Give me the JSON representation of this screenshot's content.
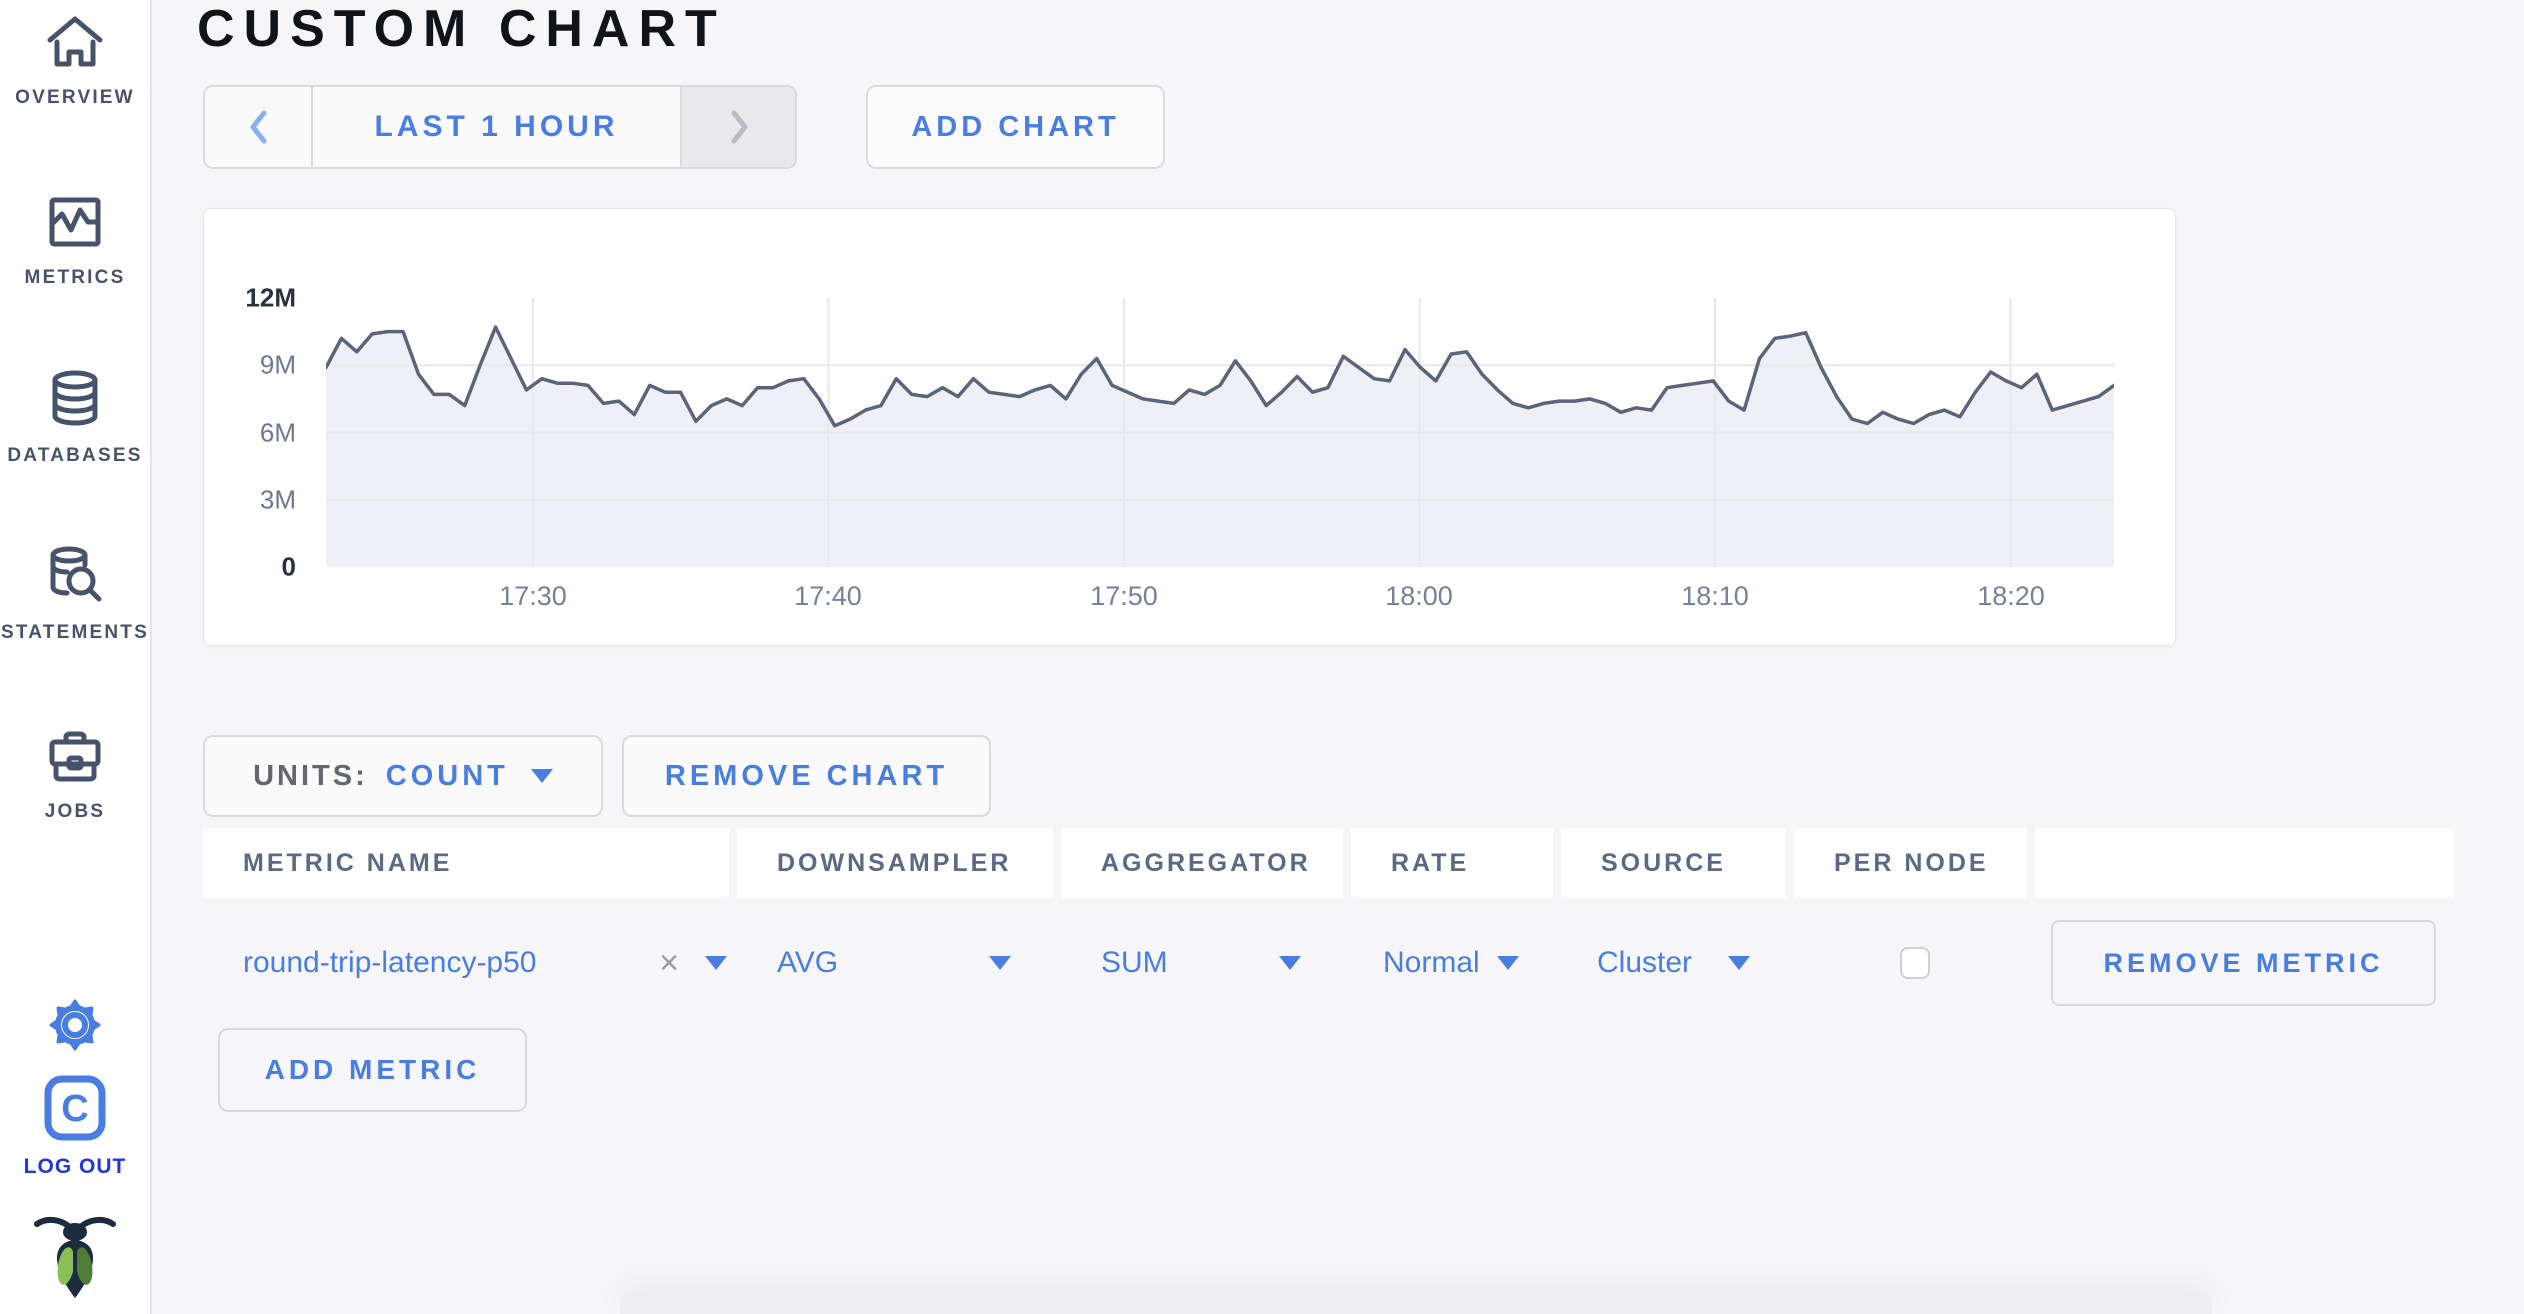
{
  "header": {
    "title": "CUSTOM CHART"
  },
  "sidebar": {
    "items": [
      {
        "label": "OVERVIEW",
        "icon": "home-icon"
      },
      {
        "label": "METRICS",
        "icon": "metrics-icon"
      },
      {
        "label": "DATABASES",
        "icon": "databases-icon"
      },
      {
        "label": "STATEMENTS",
        "icon": "statements-icon"
      },
      {
        "label": "JOBS",
        "icon": "jobs-icon"
      }
    ],
    "logout_label": "LOG OUT"
  },
  "toolbar": {
    "time_range_label": "LAST 1 HOUR",
    "add_chart_label": "ADD CHART"
  },
  "chart_controls": {
    "units_label": "UNITS:",
    "units_value": "COUNT",
    "remove_chart_label": "REMOVE CHART",
    "add_metric_label": "ADD METRIC"
  },
  "metric_table": {
    "columns": [
      "METRIC NAME",
      "DOWNSAMPLER",
      "AGGREGATOR",
      "RATE",
      "SOURCE",
      "PER NODE"
    ],
    "rows": [
      {
        "metric_name": "round-trip-latency-p50",
        "downsampler": "AVG",
        "aggregator": "SUM",
        "rate": "Normal",
        "source": "Cluster",
        "per_node_checked": false,
        "remove_label": "REMOVE METRIC"
      }
    ]
  },
  "colors": {
    "accent_blue": "#4a7de2",
    "chart_line": "#5b6478",
    "chart_fill": "#e9ebf1",
    "gridline": "#e7e8ec",
    "sidebar_text": "#46536b",
    "logout_blue": "#2336dd"
  },
  "chart_data": {
    "type": "area",
    "title": "",
    "legend": "none",
    "grid": true,
    "x_range_minutes": [
      0,
      60.5
    ],
    "x_tick_minutes": [
      7,
      17,
      27,
      37,
      47,
      57
    ],
    "x_tick_labels": [
      "17:30",
      "17:40",
      "17:50",
      "18:00",
      "18:10",
      "18:20"
    ],
    "y_ticks": [
      "0",
      "3M",
      "6M",
      "9M",
      "12M"
    ],
    "ylim": [
      0,
      12000000
    ],
    "series": [
      {
        "name": "round-trip-latency-p50",
        "units": "count (millions)",
        "values_millions": [
          8.9,
          10.2,
          9.6,
          10.4,
          10.5,
          10.5,
          8.6,
          7.7,
          7.7,
          7.2,
          9.0,
          10.7,
          9.3,
          7.9,
          8.4,
          8.2,
          8.2,
          8.1,
          7.3,
          7.4,
          6.8,
          8.1,
          7.8,
          7.8,
          6.5,
          7.2,
          7.5,
          7.2,
          8.0,
          8.0,
          8.3,
          8.4,
          7.5,
          6.3,
          6.6,
          7.0,
          7.2,
          8.4,
          7.7,
          7.6,
          8.0,
          7.6,
          8.4,
          7.8,
          7.7,
          7.6,
          7.9,
          8.1,
          7.5,
          8.6,
          9.3,
          8.1,
          7.8,
          7.5,
          7.4,
          7.3,
          7.9,
          7.7,
          8.1,
          9.2,
          8.3,
          7.2,
          7.8,
          8.5,
          7.8,
          8.0,
          9.4,
          8.9,
          8.4,
          8.3,
          9.7,
          8.9,
          8.3,
          9.5,
          9.6,
          8.6,
          7.9,
          7.3,
          7.1,
          7.3,
          7.4,
          7.4,
          7.5,
          7.3,
          6.9,
          7.1,
          7.0,
          8.0,
          8.1,
          8.2,
          8.3,
          7.4,
          7.0,
          9.3,
          10.2,
          10.3,
          10.45,
          8.9,
          7.6,
          6.6,
          6.4,
          6.9,
          6.6,
          6.4,
          6.8,
          7.0,
          6.7,
          7.8,
          8.7,
          8.3,
          8.0,
          8.6,
          7.0,
          7.2,
          7.4,
          7.6,
          8.1
        ]
      }
    ]
  }
}
